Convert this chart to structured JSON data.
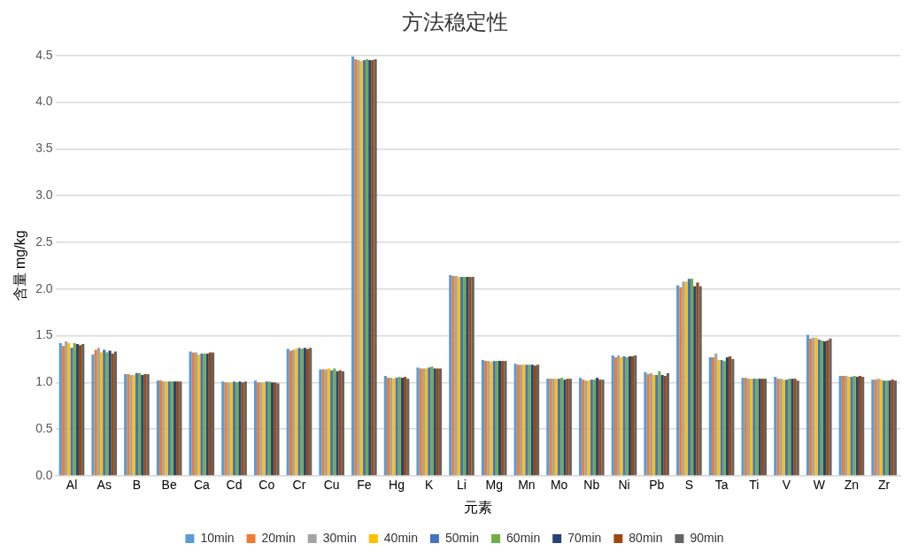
{
  "chart_data": {
    "type": "bar",
    "title": "方法稳定性",
    "xlabel": "元素",
    "ylabel": "含量 mg/kg",
    "categories": [
      "Al",
      "As",
      "B",
      "Be",
      "Ca",
      "Cd",
      "Co",
      "Cr",
      "Cu",
      "Fe",
      "Hg",
      "K",
      "Li",
      "Mg",
      "Mn",
      "Mo",
      "Nb",
      "Ni",
      "Pb",
      "S",
      "Ta",
      "Ti",
      "V",
      "W",
      "Zn",
      "Zr"
    ],
    "series": [
      {
        "name": "10min",
        "color": "#5b9bd5",
        "values": [
          1.42,
          1.3,
          1.09,
          1.02,
          1.33,
          1.01,
          1.02,
          1.36,
          1.14,
          4.49,
          1.07,
          1.16,
          2.15,
          1.24,
          1.2,
          1.04,
          1.05,
          1.29,
          1.11,
          2.04,
          1.27,
          1.05,
          1.06,
          1.51,
          1.07,
          1.03
        ]
      },
      {
        "name": "20min",
        "color": "#ed7d31",
        "values": [
          1.39,
          1.35,
          1.09,
          1.02,
          1.32,
          1.0,
          1.0,
          1.34,
          1.14,
          4.46,
          1.05,
          1.15,
          2.14,
          1.23,
          1.19,
          1.04,
          1.03,
          1.27,
          1.09,
          2.02,
          1.27,
          1.05,
          1.04,
          1.47,
          1.07,
          1.03
        ]
      },
      {
        "name": "30min",
        "color": "#a5a5a5",
        "values": [
          1.44,
          1.37,
          1.08,
          1.01,
          1.32,
          1.0,
          1.0,
          1.35,
          1.14,
          4.45,
          1.05,
          1.15,
          2.14,
          1.23,
          1.19,
          1.04,
          1.02,
          1.29,
          1.1,
          2.08,
          1.31,
          1.04,
          1.04,
          1.48,
          1.07,
          1.04
        ]
      },
      {
        "name": "40min",
        "color": "#ffc000",
        "values": [
          1.42,
          1.32,
          1.08,
          1.01,
          1.3,
          1.0,
          1.0,
          1.36,
          1.15,
          4.44,
          1.04,
          1.15,
          2.13,
          1.22,
          1.19,
          1.04,
          1.02,
          1.27,
          1.08,
          2.08,
          1.24,
          1.04,
          1.03,
          1.48,
          1.06,
          1.03
        ]
      },
      {
        "name": "50min",
        "color": "#4472c4",
        "values": [
          1.37,
          1.35,
          1.1,
          1.01,
          1.31,
          1.01,
          1.01,
          1.37,
          1.13,
          4.45,
          1.05,
          1.16,
          2.13,
          1.23,
          1.19,
          1.04,
          1.03,
          1.28,
          1.08,
          2.11,
          1.24,
          1.04,
          1.03,
          1.46,
          1.06,
          1.02
        ]
      },
      {
        "name": "60min",
        "color": "#70ad47",
        "values": [
          1.42,
          1.32,
          1.1,
          1.01,
          1.31,
          1.0,
          1.01,
          1.36,
          1.15,
          4.46,
          1.06,
          1.17,
          2.13,
          1.23,
          1.19,
          1.05,
          1.03,
          1.27,
          1.12,
          2.11,
          1.23,
          1.04,
          1.04,
          1.45,
          1.07,
          1.02
        ]
      },
      {
        "name": "70min",
        "color": "#264478",
        "values": [
          1.41,
          1.34,
          1.08,
          1.01,
          1.31,
          1.01,
          1.0,
          1.37,
          1.12,
          4.45,
          1.05,
          1.15,
          2.13,
          1.23,
          1.19,
          1.03,
          1.05,
          1.28,
          1.08,
          2.03,
          1.27,
          1.04,
          1.04,
          1.44,
          1.06,
          1.02
        ]
      },
      {
        "name": "80min",
        "color": "#9e480e",
        "values": [
          1.4,
          1.31,
          1.09,
          1.01,
          1.32,
          1.0,
          1.0,
          1.36,
          1.13,
          4.45,
          1.06,
          1.15,
          2.13,
          1.23,
          1.18,
          1.04,
          1.03,
          1.28,
          1.07,
          2.07,
          1.28,
          1.04,
          1.04,
          1.45,
          1.07,
          1.03
        ]
      },
      {
        "name": "90min",
        "color": "#636363",
        "values": [
          1.41,
          1.33,
          1.09,
          1.01,
          1.32,
          1.01,
          0.99,
          1.37,
          1.12,
          4.46,
          1.04,
          1.15,
          2.13,
          1.23,
          1.19,
          1.04,
          1.03,
          1.29,
          1.1,
          2.03,
          1.25,
          1.04,
          1.02,
          1.47,
          1.06,
          1.02
        ]
      }
    ],
    "ylim": [
      0,
      4.5
    ],
    "yticks": [
      {
        "value": 0,
        "label": "0.0"
      },
      {
        "value": 0.5,
        "label": "0.5"
      },
      {
        "value": 1,
        "label": "1.0"
      },
      {
        "value": 1.5,
        "label": "1.5"
      },
      {
        "value": 2,
        "label": "2.0"
      },
      {
        "value": 2.5,
        "label": "2.5"
      },
      {
        "value": 3,
        "label": "3.0"
      },
      {
        "value": 3.5,
        "label": "3.5"
      },
      {
        "value": 4,
        "label": "4.0"
      },
      {
        "value": 4.5,
        "label": "4.5"
      }
    ],
    "grid": "y",
    "legend": "bottom"
  }
}
